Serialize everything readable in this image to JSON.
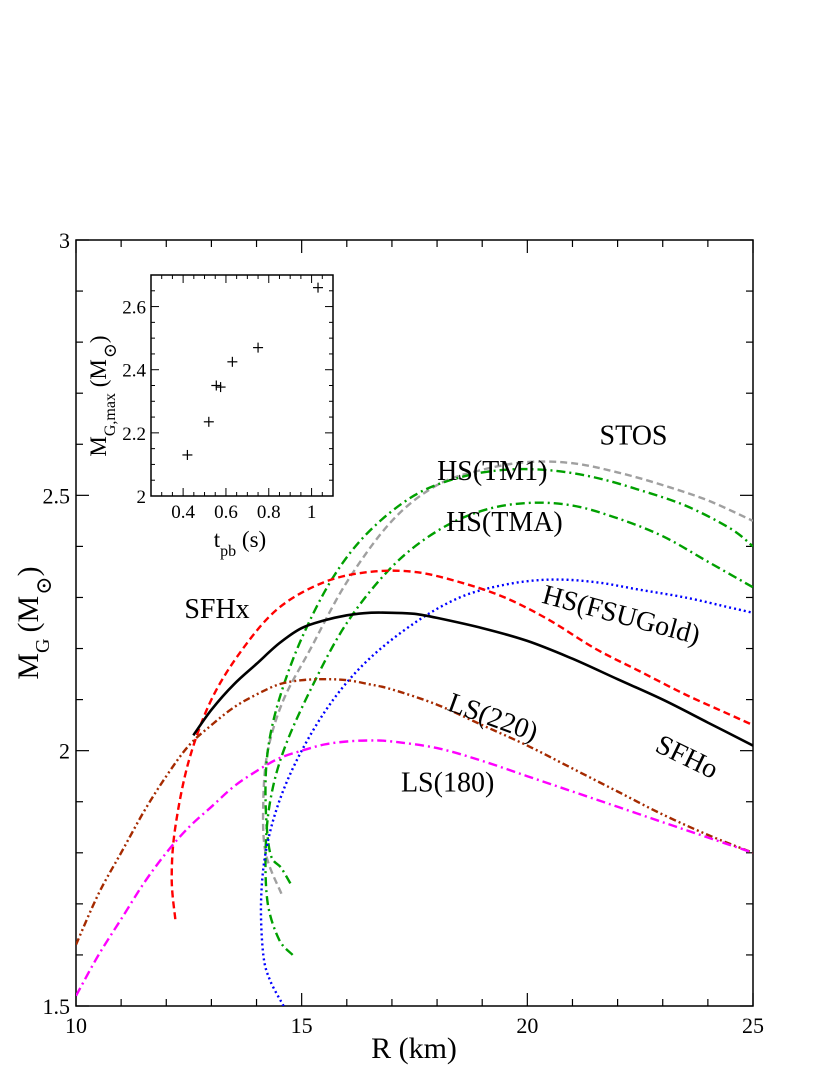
{
  "chart_data": [
    {
      "type": "line",
      "xlabel": "R (km)",
      "ylabel_main": "M",
      "ylabel_sub": "G",
      "ylabel_unit": "(M",
      "ylabel_unit_close": ")",
      "xlim": [
        10,
        25
      ],
      "ylim": [
        1.5,
        3.0
      ],
      "xticks": [
        10,
        15,
        20,
        25
      ],
      "yticks": [
        1.5,
        2,
        2.5,
        3
      ],
      "xtick_labels": [
        "10",
        "15",
        "20",
        "25"
      ],
      "ytick_labels": [
        "1.5",
        "2",
        "2.5",
        "3"
      ],
      "series": [
        {
          "name": "STOS",
          "color": "#a0a0a0",
          "dash": "dashed",
          "x": [
            14.55,
            14.2,
            14.15,
            14.25,
            14.6,
            15.2,
            16.0,
            17.0,
            18.0,
            19.0,
            20.0,
            21.0,
            22.0,
            23.0,
            24.0,
            25.0
          ],
          "y": [
            1.72,
            1.8,
            1.9,
            2.0,
            2.1,
            2.2,
            2.33,
            2.45,
            2.52,
            2.55,
            2.565,
            2.563,
            2.545,
            2.52,
            2.49,
            2.45
          ]
        },
        {
          "name": "HS(TM1)",
          "color": "#00a000",
          "dash": "dashdot",
          "x": [
            14.75,
            14.55,
            14.3,
            14.2,
            14.25,
            14.5,
            15.0,
            15.7,
            16.5,
            17.5,
            18.5,
            19.5,
            20.5,
            21.5,
            22.5,
            23.5,
            24.5,
            25.0
          ],
          "y": [
            1.74,
            1.77,
            1.8,
            1.9,
            2.0,
            2.1,
            2.22,
            2.34,
            2.43,
            2.5,
            2.535,
            2.55,
            2.549,
            2.535,
            2.51,
            2.48,
            2.435,
            2.4
          ]
        },
        {
          "name": "HS(TMA)",
          "color": "#00a000",
          "dash": "dashdot",
          "x": [
            14.8,
            14.5,
            14.25,
            14.2,
            14.3,
            14.6,
            15.2,
            16.0,
            17.0,
            18.0,
            19.0,
            20.0,
            21.0,
            22.0,
            23.0,
            24.0,
            25.0
          ],
          "y": [
            1.6,
            1.63,
            1.7,
            1.8,
            1.9,
            2.0,
            2.12,
            2.25,
            2.36,
            2.43,
            2.47,
            2.485,
            2.48,
            2.455,
            2.42,
            2.37,
            2.32
          ]
        },
        {
          "name": "HS(FSUGold)",
          "color": "#0000ff",
          "dash": "dotted",
          "x": [
            14.6,
            14.3,
            14.15,
            14.1,
            14.2,
            14.5,
            15.0,
            15.7,
            16.5,
            17.5,
            18.5,
            19.5,
            20.5,
            21.5,
            22.5,
            23.5,
            24.5,
            25.0
          ],
          "y": [
            1.5,
            1.55,
            1.6,
            1.7,
            1.8,
            1.9,
            2.0,
            2.1,
            2.18,
            2.25,
            2.3,
            2.325,
            2.335,
            2.33,
            2.315,
            2.3,
            2.28,
            2.27
          ]
        },
        {
          "name": "SFHx",
          "color": "#ff0000",
          "dash": "dashed",
          "x": [
            12.2,
            12.12,
            12.2,
            12.5,
            13.0,
            13.7,
            14.5,
            15.5,
            16.5,
            17.5,
            18.5,
            19.5,
            20.5,
            21.5,
            22.5,
            23.5,
            24.5,
            25.0
          ],
          "y": [
            1.67,
            1.75,
            1.85,
            1.98,
            2.1,
            2.2,
            2.28,
            2.33,
            2.35,
            2.35,
            2.33,
            2.3,
            2.255,
            2.2,
            2.155,
            2.11,
            2.07,
            2.05
          ]
        },
        {
          "name": "SFHo",
          "color": "#000000",
          "dash": "solid",
          "x": [
            12.6,
            13.0,
            13.5,
            14.0,
            14.5,
            15.0,
            15.5,
            16.0,
            16.5,
            17.0,
            17.5,
            18.0,
            19.0,
            20.0,
            21.0,
            22.0,
            23.0,
            24.0,
            25.0
          ],
          "y": [
            2.03,
            2.08,
            2.13,
            2.17,
            2.21,
            2.24,
            2.255,
            2.265,
            2.27,
            2.27,
            2.268,
            2.26,
            2.24,
            2.215,
            2.18,
            2.14,
            2.1,
            2.055,
            2.01
          ]
        },
        {
          "name": "LS(220)",
          "color": "#a52a00",
          "dash": "dashdotdot",
          "x": [
            10.0,
            10.5,
            11.0,
            11.5,
            12.0,
            12.5,
            13.0,
            13.5,
            14.0,
            14.5,
            15.0,
            15.5,
            16.0,
            16.5,
            17.0,
            18.0,
            19.0,
            20.0,
            21.0,
            22.0,
            23.0,
            24.0,
            25.0
          ],
          "y": [
            1.62,
            1.72,
            1.8,
            1.88,
            1.95,
            2.01,
            2.05,
            2.085,
            2.11,
            2.13,
            2.138,
            2.14,
            2.138,
            2.13,
            2.12,
            2.09,
            2.05,
            2.01,
            1.965,
            1.92,
            1.875,
            1.835,
            1.8
          ]
        },
        {
          "name": "LS(180)",
          "color": "#ff00ff",
          "dash": "dashdot",
          "x": [
            10.0,
            10.5,
            11.0,
            11.5,
            12.0,
            12.5,
            13.0,
            13.5,
            14.0,
            14.5,
            15.0,
            15.5,
            16.0,
            16.5,
            17.0,
            18.0,
            19.0,
            20.0,
            21.0,
            22.0,
            23.0,
            24.0,
            25.0
          ],
          "y": [
            1.52,
            1.6,
            1.67,
            1.74,
            1.8,
            1.85,
            1.89,
            1.93,
            1.96,
            1.985,
            2.0,
            2.012,
            2.018,
            2.02,
            2.018,
            2.005,
            1.98,
            1.95,
            1.92,
            1.89,
            1.86,
            1.83,
            1.8
          ]
        }
      ],
      "labels": [
        {
          "text": "STOS",
          "x": 21.6,
          "y": 2.6,
          "rotate": 0
        },
        {
          "text": "HS(TM1)",
          "x": 18.0,
          "y": 2.53,
          "rotate": 0
        },
        {
          "text": "HS(TMA)",
          "x": 18.2,
          "y": 2.43,
          "rotate": 0
        },
        {
          "text": "HS(FSUGold)",
          "x": 20.3,
          "y": 2.29,
          "rotate": 15
        },
        {
          "text": "SFHx",
          "x": 12.4,
          "y": 2.26,
          "rotate": 0
        },
        {
          "text": "LS(220)",
          "x": 18.2,
          "y": 2.08,
          "rotate": 20
        },
        {
          "text": "SFHo",
          "x": 22.8,
          "y": 2.0,
          "rotate": 26
        },
        {
          "text": "LS(180)",
          "x": 17.2,
          "y": 1.92,
          "rotate": 0
        }
      ]
    },
    {
      "type": "scatter",
      "xlabel_main": "t",
      "xlabel_sub": "pb",
      "xlabel_unit": " (s)",
      "ylabel_main": "M",
      "ylabel_sub": "G,max",
      "ylabel_unit": " (M",
      "ylabel_unit_close": ")",
      "xlim": [
        0.25,
        1.1
      ],
      "ylim": [
        2.0,
        2.7
      ],
      "xticks": [
        0.4,
        0.6,
        0.8,
        1.0
      ],
      "xtick_labels": [
        "0.4",
        "0.6",
        "0.8",
        "1"
      ],
      "yticks": [
        2.0,
        2.2,
        2.4,
        2.6
      ],
      "ytick_labels": [
        "2",
        "2.2",
        "2.4",
        "2.6"
      ],
      "marker": "plus",
      "points": [
        {
          "x": 0.42,
          "y": 2.13
        },
        {
          "x": 0.52,
          "y": 2.235
        },
        {
          "x": 0.555,
          "y": 2.35
        },
        {
          "x": 0.575,
          "y": 2.345
        },
        {
          "x": 0.63,
          "y": 2.425
        },
        {
          "x": 0.75,
          "y": 2.47
        },
        {
          "x": 1.03,
          "y": 2.66
        }
      ]
    }
  ]
}
